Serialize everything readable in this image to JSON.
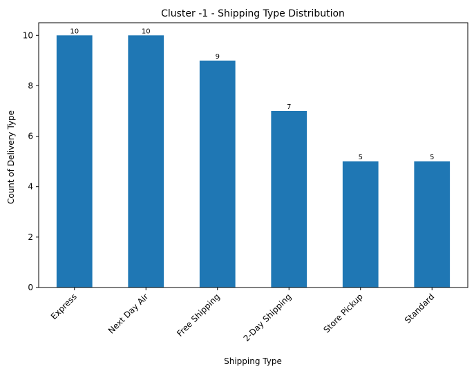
{
  "chart_data": {
    "type": "bar",
    "title": "Cluster -1 - Shipping Type Distribution",
    "xlabel": "Shipping Type",
    "ylabel": "Count of Delivery Type",
    "categories": [
      "Express",
      "Next Day Air",
      "Free Shipping",
      "2-Day Shipping",
      "Store Pickup",
      "Standard"
    ],
    "values": [
      10,
      10,
      9,
      7,
      5,
      5
    ],
    "data_labels": [
      "10",
      "10",
      "9",
      "7",
      "5",
      "5"
    ],
    "ylim": [
      0,
      10.5
    ],
    "yticks": [
      0,
      2,
      4,
      6,
      8,
      10
    ],
    "ytick_labels": [
      "0",
      "2",
      "4",
      "6",
      "8",
      "10"
    ],
    "grid": false,
    "bar_color": "#1f77b4"
  }
}
